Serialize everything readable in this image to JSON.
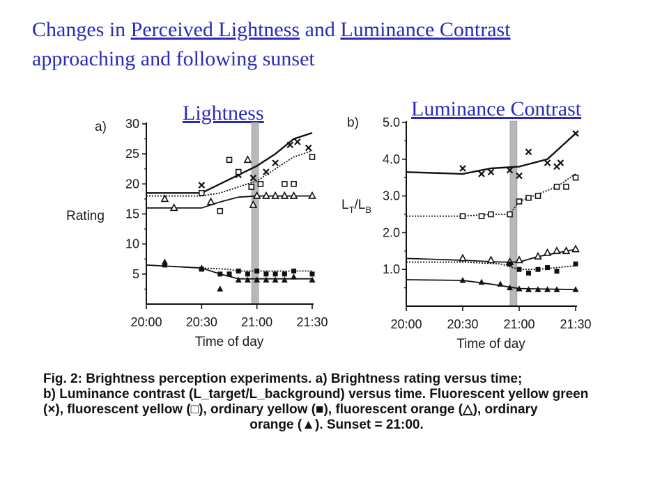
{
  "title": {
    "prefix": "Changes in ",
    "link1": "Perceived Lightness",
    "mid": " and ",
    "link2": "Luminance Contrast",
    "line2": "approaching and following sunset"
  },
  "headings": {
    "a": "Lightness",
    "b": "Luminance Contrast"
  },
  "caption": {
    "line1": "Fig. 2: Brightness perception experiments. a) Brightness rating versus time;",
    "line2": "b) Luminance contrast (L_target/L_background) versus time. Fluorescent yellow green",
    "line3": "(×), fluorescent yellow (□), ordinary yellow (■), fluorescent orange (△), ordinary",
    "line4": "orange (▲). Sunset = 21:00."
  },
  "chart_data": [
    {
      "type": "line",
      "panel_label": "a)",
      "xlabel": "Time of day",
      "ylabel": "Rating",
      "x_ticks": [
        "20:00",
        "20:30",
        "21:00",
        "21:30"
      ],
      "xlim": [
        "20:00",
        "21:30"
      ],
      "y_ticks": [
        5,
        10,
        15,
        20,
        25,
        30
      ],
      "ylim": [
        0,
        30
      ],
      "sunset": "20:59",
      "series": [
        {
          "marker": "x",
          "label": "Fluorescent yellow green",
          "line": [
            [
              "20:00",
              18.5
            ],
            [
              "20:30",
              18.5
            ],
            [
              "20:40",
              20
            ],
            [
              "20:50",
              21.5
            ],
            [
              "21:00",
              23
            ],
            [
              "21:10",
              25
            ],
            [
              "21:20",
              27.5
            ],
            [
              "21:30",
              28.5
            ]
          ],
          "points": [
            [
              "20:30",
              19.8
            ],
            [
              "20:50",
              21.5
            ],
            [
              "20:58",
              21
            ],
            [
              "21:05",
              22
            ],
            [
              "21:10",
              23.5
            ],
            [
              "21:18",
              26.5
            ],
            [
              "21:22",
              27
            ],
            [
              "21:28",
              26
            ]
          ]
        },
        {
          "marker": "square",
          "label": "Fluorescent yellow",
          "line": [
            [
              "20:00",
              18
            ],
            [
              "20:30",
              18
            ],
            [
              "20:40",
              18.5
            ],
            [
              "20:50",
              19.5
            ],
            [
              "21:00",
              20.5
            ],
            [
              "21:10",
              22.5
            ],
            [
              "21:20",
              24.5
            ],
            [
              "21:30",
              25.5
            ]
          ],
          "points": [
            [
              "20:30",
              18.5
            ],
            [
              "20:40",
              15.5
            ],
            [
              "20:45",
              24
            ],
            [
              "20:50",
              22
            ],
            [
              "20:57",
              19.5
            ],
            [
              "21:02",
              20
            ],
            [
              "21:15",
              20
            ],
            [
              "21:20",
              20
            ],
            [
              "21:30",
              24.5
            ]
          ]
        },
        {
          "marker": "triangle-open",
          "label": "Fluorescent orange",
          "line": [
            [
              "20:00",
              16
            ],
            [
              "20:30",
              16
            ],
            [
              "20:40",
              17
            ],
            [
              "20:50",
              17.8
            ],
            [
              "21:00",
              18
            ],
            [
              "21:30",
              18
            ]
          ],
          "points": [
            [
              "20:10",
              17.5
            ],
            [
              "20:15",
              16
            ],
            [
              "20:35",
              17
            ],
            [
              "20:55",
              24
            ],
            [
              "20:58",
              16.5
            ],
            [
              "21:00",
              18
            ],
            [
              "21:05",
              18
            ],
            [
              "21:10",
              18
            ],
            [
              "21:15",
              18
            ],
            [
              "21:20",
              18
            ],
            [
              "21:30",
              18
            ]
          ]
        },
        {
          "marker": "square-filled",
          "label": "Ordinary yellow",
          "line": [
            [
              "20:00",
              6.5
            ],
            [
              "20:30",
              6
            ],
            [
              "20:45",
              5.8
            ],
            [
              "20:50",
              5.5
            ],
            [
              "21:00",
              5.5
            ],
            [
              "21:30",
              5.5
            ]
          ],
          "points": [
            [
              "20:10",
              6.5
            ],
            [
              "20:30",
              5.8
            ],
            [
              "20:40",
              5
            ],
            [
              "20:45",
              5
            ],
            [
              "20:50",
              5.5
            ],
            [
              "20:55",
              5
            ],
            [
              "21:00",
              5.5
            ],
            [
              "21:05",
              5
            ],
            [
              "21:10",
              5
            ],
            [
              "21:15",
              5
            ],
            [
              "21:20",
              5.5
            ],
            [
              "21:30",
              5
            ]
          ]
        },
        {
          "marker": "triangle-filled",
          "label": "Ordinary orange",
          "line": [
            [
              "20:00",
              6.5
            ],
            [
              "20:30",
              6
            ],
            [
              "20:40",
              5
            ],
            [
              "20:50",
              4.2
            ],
            [
              "21:00",
              4.2
            ],
            [
              "21:30",
              4.2
            ]
          ],
          "points": [
            [
              "20:10",
              7
            ],
            [
              "20:30",
              6
            ],
            [
              "20:40",
              2.5
            ],
            [
              "20:45",
              5
            ],
            [
              "20:50",
              4
            ],
            [
              "20:55",
              4
            ],
            [
              "21:00",
              4
            ],
            [
              "21:05",
              4
            ],
            [
              "21:10",
              4
            ],
            [
              "21:15",
              4
            ],
            [
              "21:20",
              4.5
            ],
            [
              "21:30",
              4
            ]
          ]
        }
      ]
    },
    {
      "type": "line",
      "panel_label": "b)",
      "xlabel": "Time of day",
      "ylabel": "LT/LB",
      "x_ticks": [
        "20:00",
        "20:30",
        "21:00",
        "21:30"
      ],
      "xlim": [
        "20:00",
        "21:30"
      ],
      "y_ticks": [
        1.0,
        2.0,
        3.0,
        4.0,
        5.0
      ],
      "ylim": [
        0,
        5
      ],
      "sunset": "20:57",
      "series": [
        {
          "marker": "x",
          "label": "Fluorescent yellow green",
          "line": [
            [
              "20:00",
              3.65
            ],
            [
              "20:30",
              3.6
            ],
            [
              "20:45",
              3.75
            ],
            [
              "21:00",
              3.8
            ],
            [
              "21:15",
              4.0
            ],
            [
              "21:30",
              4.7
            ]
          ],
          "points": [
            [
              "20:30",
              3.75
            ],
            [
              "20:40",
              3.6
            ],
            [
              "20:45",
              3.65
            ],
            [
              "20:55",
              3.7
            ],
            [
              "21:00",
              3.55
            ],
            [
              "21:05",
              4.2
            ],
            [
              "21:15",
              3.9
            ],
            [
              "21:20",
              3.8
            ],
            [
              "21:22",
              3.9
            ],
            [
              "21:30",
              4.7
            ]
          ]
        },
        {
          "marker": "square",
          "label": "Fluorescent yellow",
          "line": [
            [
              "20:00",
              2.45
            ],
            [
              "20:30",
              2.45
            ],
            [
              "20:45",
              2.5
            ],
            [
              "20:55",
              2.5
            ],
            [
              "21:00",
              2.85
            ],
            [
              "21:20",
              3.25
            ],
            [
              "21:30",
              3.6
            ]
          ],
          "points": [
            [
              "20:30",
              2.45
            ],
            [
              "20:40",
              2.45
            ],
            [
              "20:45",
              2.5
            ],
            [
              "20:55",
              2.5
            ],
            [
              "21:00",
              2.85
            ],
            [
              "21:05",
              2.95
            ],
            [
              "21:10",
              3.0
            ],
            [
              "21:20",
              3.25
            ],
            [
              "21:25",
              3.25
            ],
            [
              "21:30",
              3.5
            ]
          ]
        },
        {
          "marker": "triangle-open",
          "label": "Fluorescent orange",
          "line": [
            [
              "20:00",
              1.3
            ],
            [
              "20:30",
              1.25
            ],
            [
              "20:50",
              1.2
            ],
            [
              "21:00",
              1.2
            ],
            [
              "21:10",
              1.35
            ],
            [
              "21:30",
              1.55
            ]
          ],
          "points": [
            [
              "20:30",
              1.3
            ],
            [
              "20:45",
              1.25
            ],
            [
              "20:55",
              1.2
            ],
            [
              "21:00",
              1.25
            ],
            [
              "21:10",
              1.35
            ],
            [
              "21:15",
              1.45
            ],
            [
              "21:20",
              1.5
            ],
            [
              "21:25",
              1.5
            ],
            [
              "21:30",
              1.55
            ]
          ]
        },
        {
          "marker": "square-filled",
          "label": "Ordinary yellow",
          "line": [
            [
              "20:00",
              1.2
            ],
            [
              "20:30",
              1.2
            ],
            [
              "20:50",
              1.15
            ],
            [
              "21:00",
              1.0
            ],
            [
              "21:10",
              1.0
            ],
            [
              "21:30",
              1.1
            ]
          ],
          "points": [
            [
              "20:55",
              1.15
            ],
            [
              "21:00",
              1.0
            ],
            [
              "21:05",
              0.9
            ],
            [
              "21:10",
              1.0
            ],
            [
              "21:15",
              1.05
            ],
            [
              "21:20",
              0.95
            ],
            [
              "21:30",
              1.15
            ]
          ]
        },
        {
          "marker": "triangle-filled",
          "label": "Ordinary orange",
          "line": [
            [
              "20:00",
              0.72
            ],
            [
              "20:30",
              0.7
            ],
            [
              "20:45",
              0.6
            ],
            [
              "21:00",
              0.48
            ],
            [
              "21:30",
              0.45
            ]
          ],
          "points": [
            [
              "20:30",
              0.7
            ],
            [
              "20:40",
              0.65
            ],
            [
              "20:50",
              0.6
            ],
            [
              "20:55",
              0.5
            ],
            [
              "21:00",
              0.47
            ],
            [
              "21:05",
              0.45
            ],
            [
              "21:10",
              0.45
            ],
            [
              "21:15",
              0.45
            ],
            [
              "21:20",
              0.45
            ],
            [
              "21:30",
              0.45
            ]
          ]
        }
      ]
    }
  ]
}
